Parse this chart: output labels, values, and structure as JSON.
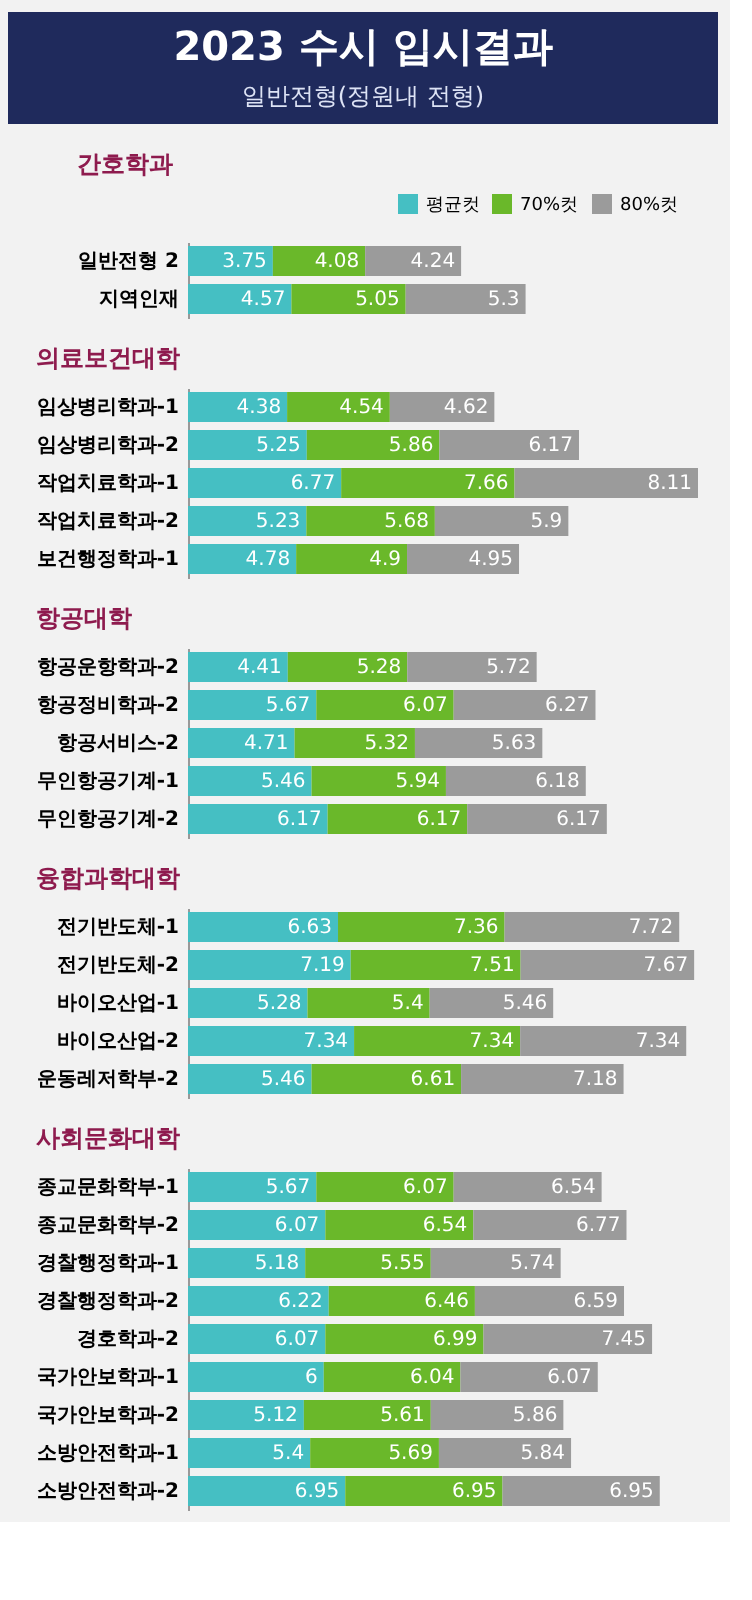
{
  "chart_data": [
    {
      "type": "other",
      "title": "2023 수시 입시결과",
      "subtitle": "일반전형(정원내 전형)"
    },
    {
      "type": "bar",
      "orientation": "horizontal",
      "stacked": true,
      "data_labels": true,
      "legend": "top right",
      "tick_labels": "y",
      "title": "간호학과",
      "categories": [
        "일반전형 2",
        "지역인재"
      ],
      "series": [
        {
          "name": "평균컷",
          "color": "#45bfc3",
          "values": [
            3.75,
            4.57
          ]
        },
        {
          "name": "70%컷",
          "color": "#6ab82a",
          "values": [
            4.08,
            5.05
          ]
        },
        {
          "name": "80%컷",
          "color": "#9b9b9b",
          "values": [
            4.24,
            5.3
          ]
        }
      ]
    },
    {
      "type": "bar",
      "orientation": "horizontal",
      "stacked": true,
      "data_labels": true,
      "tick_labels": "y",
      "title": "의료보건대학",
      "categories": [
        "임상병리학과-1",
        "임상병리학과-2",
        "작업치료학과-1",
        "작업치료학과-2",
        "보건행정학과-1"
      ],
      "series": [
        {
          "color": "#45bfc3",
          "values": [
            4.38,
            5.25,
            6.77,
            5.23,
            4.78
          ]
        },
        {
          "color": "#6ab82a",
          "values": [
            4.54,
            5.86,
            7.66,
            5.68,
            4.9
          ]
        },
        {
          "color": "#9b9b9b",
          "values": [
            4.62,
            6.17,
            8.11,
            5.9,
            4.95
          ]
        }
      ]
    },
    {
      "type": "bar",
      "orientation": "horizontal",
      "stacked": true,
      "data_labels": true,
      "tick_labels": "y",
      "title": "항공대학",
      "categories": [
        "항공운항학과-2",
        "항공정비학과-2",
        "항공서비스-2",
        "무인항공기계-1",
        "무인항공기계-2"
      ],
      "series": [
        {
          "color": "#45bfc3",
          "values": [
            4.41,
            5.67,
            4.71,
            5.46,
            6.17
          ]
        },
        {
          "color": "#6ab82a",
          "values": [
            5.28,
            6.07,
            5.32,
            5.94,
            6.17
          ]
        },
        {
          "color": "#9b9b9b",
          "values": [
            5.72,
            6.27,
            5.63,
            6.18,
            6.17
          ]
        }
      ]
    },
    {
      "type": "bar",
      "orientation": "horizontal",
      "stacked": true,
      "data_labels": true,
      "tick_labels": "y",
      "title": "융합과학대학",
      "categories": [
        "전기반도체-1",
        "전기반도체-2",
        "바이오산업-1",
        "바이오산업-2",
        "운동레저학부-2"
      ],
      "series": [
        {
          "color": "#45bfc3",
          "values": [
            6.63,
            7.19,
            5.28,
            7.34,
            5.46
          ]
        },
        {
          "color": "#6ab82a",
          "values": [
            7.36,
            7.51,
            5.4,
            7.34,
            6.61
          ]
        },
        {
          "color": "#9b9b9b",
          "values": [
            7.72,
            7.67,
            5.46,
            7.34,
            7.18
          ]
        }
      ]
    },
    {
      "type": "bar",
      "orientation": "horizontal",
      "stacked": true,
      "data_labels": true,
      "tick_labels": "y",
      "title": "사회문화대학",
      "categories": [
        "종교문화학부-1",
        "종교문화학부-2",
        "경찰행정학과-1",
        "경찰행정학과-2",
        "경호학과-2",
        "국가안보학과-1",
        "국가안보학과-2",
        "소방안전학과-1",
        "소방안전학과-2"
      ],
      "series": [
        {
          "color": "#45bfc3",
          "values": [
            5.67,
            6.07,
            5.18,
            6.22,
            6.07,
            6,
            5.12,
            5.4,
            6.95
          ]
        },
        {
          "color": "#6ab82a",
          "values": [
            6.07,
            6.54,
            5.55,
            6.46,
            6.99,
            6.04,
            5.61,
            5.69,
            6.95
          ]
        },
        {
          "color": "#9b9b9b",
          "values": [
            6.54,
            6.77,
            5.74,
            6.59,
            7.45,
            6.07,
            5.86,
            5.84,
            6.95
          ]
        }
      ]
    }
  ]
}
